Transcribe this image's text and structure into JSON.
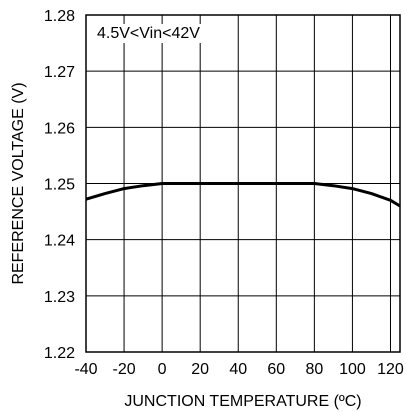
{
  "chart_data": {
    "type": "line",
    "xlabel": "JUNCTION TEMPERATURE (ºC)",
    "ylabel": "REFERENCE VOLTAGE (V)",
    "annotation": "4.5V<Vin<42V",
    "xlim": [
      -40,
      125
    ],
    "ylim": [
      1.22,
      1.28
    ],
    "x_ticks": [
      -40,
      -20,
      0,
      20,
      40,
      60,
      80,
      100,
      120
    ],
    "x_tick_labels": [
      "-40",
      "-20",
      "0",
      "20",
      "40",
      "60",
      "80",
      "100",
      "120"
    ],
    "y_ticks": [
      1.22,
      1.23,
      1.24,
      1.25,
      1.26,
      1.27,
      1.28
    ],
    "y_tick_labels": [
      "1.22",
      "1.23",
      "1.24",
      "1.25",
      "1.26",
      "1.27",
      "1.28"
    ],
    "grid": true,
    "series": [
      {
        "color": "#000000",
        "x": [
          -40,
          -30,
          -20,
          -10,
          0,
          10,
          20,
          40,
          60,
          80,
          90,
          100,
          110,
          120,
          125
        ],
        "y": [
          1.2472,
          1.2482,
          1.2491,
          1.2496,
          1.25,
          1.25,
          1.25,
          1.25,
          1.25,
          1.25,
          1.2496,
          1.2491,
          1.2482,
          1.247,
          1.246
        ]
      }
    ]
  }
}
